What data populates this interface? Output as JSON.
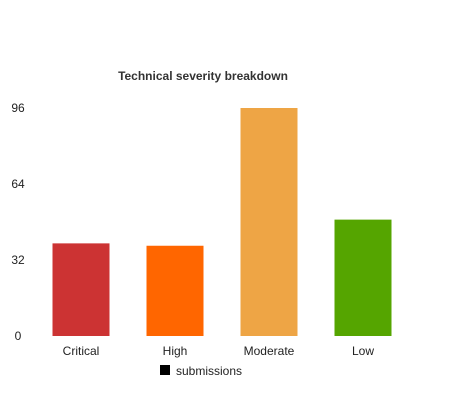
{
  "chart_data": {
    "type": "bar",
    "title": "Technical severity breakdown",
    "categories": [
      "Critical",
      "High",
      "Moderate",
      "Low"
    ],
    "series": [
      {
        "name": "submissions",
        "values": [
          39,
          38,
          96,
          49
        ]
      }
    ],
    "colors": [
      "#cc3333",
      "#ff6600",
      "#eea545",
      "#55a500"
    ],
    "legend_swatch_color": "#000000",
    "ylim": [
      0,
      96
    ],
    "yticks": [
      "0",
      "32",
      "64",
      "96"
    ],
    "grid": false,
    "legend_position": "bottom-center"
  }
}
